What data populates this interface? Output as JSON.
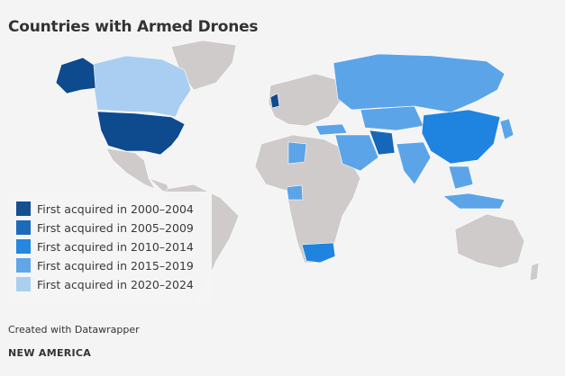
{
  "title": "Countries with Armed Drones",
  "colors": {
    "2000-2004": "#0d4a8e",
    "2005-2009": "#1666ba",
    "2010-2014": "#1f84e0",
    "2015-2019": "#5ca4e8",
    "2020-2024": "#a9cef1",
    "no_data": "#cfcbcb",
    "background": "#f4f4f4"
  },
  "legend": [
    {
      "label": "First acquired in 2000–2004",
      "key": "2000-2004"
    },
    {
      "label": "First acquired in 2005–2009",
      "key": "2005-2009"
    },
    {
      "label": "First acquired in 2010–2014",
      "key": "2010-2014"
    },
    {
      "label": "First acquired in 2015–2019",
      "key": "2015-2019"
    },
    {
      "label": "First acquired in 2020–2024",
      "key": "2020-2024"
    }
  ],
  "credit": "Created with Datawrapper",
  "brand": "NEW AMERICA"
}
